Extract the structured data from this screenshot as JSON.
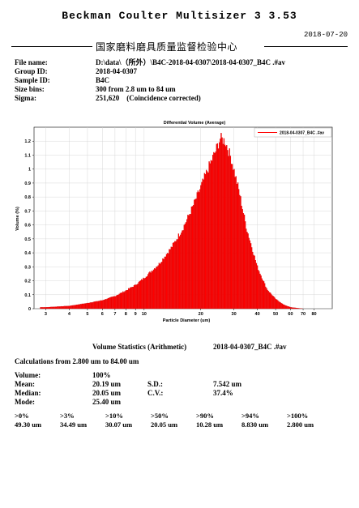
{
  "report": {
    "title": "Beckman Coulter Multisizer 3  3.53",
    "date": "2018-07-20",
    "organization": "国家磨料磨具质量监督检验中心"
  },
  "info": [
    {
      "label": "File name:",
      "value": "D:\\data\\（所外）\\B4C-2018-04-0307\\2018-04-0307_B4C .#av"
    },
    {
      "label": "Group ID:",
      "value": "2018-04-0307"
    },
    {
      "label": "Sample ID:",
      "value": "B4C"
    },
    {
      "label": "Size bins:",
      "value": "300 from 2.8 um to 84 um"
    },
    {
      "label": "Sigma:",
      "value": "251,620    (Coincidence corrected)"
    }
  ],
  "chart_data": {
    "type": "bar",
    "title": "Differential Volume (Average)",
    "xlabel": "Particle Diameter (um)",
    "ylabel": "Volume (%)",
    "x_scale": "log",
    "xlim": [
      2.8,
      84
    ],
    "ylim": [
      0,
      1.3
    ],
    "x_ticks": [
      "3",
      "4",
      "5",
      "6",
      "7",
      "8",
      "9",
      "10",
      "20",
      "30",
      "40",
      "50",
      "60",
      "70",
      "80"
    ],
    "y_ticks": [
      "0",
      "0.1",
      "0.2",
      "0.3",
      "0.4",
      "0.5",
      "0.6",
      "0.7",
      "0.8",
      "0.9",
      "1",
      "1.1",
      "1.2"
    ],
    "grid": true,
    "legend_position": "top-right",
    "series": [
      {
        "name": "2018-04-0307_B4C .#av",
        "color": "#ff0000"
      }
    ],
    "x": [
      3,
      4,
      5,
      6,
      7,
      8,
      9,
      10,
      12,
      14,
      16,
      18,
      20,
      22,
      24,
      25.4,
      27,
      29,
      32,
      35,
      40,
      45,
      50,
      55,
      60,
      70,
      84
    ],
    "values": [
      0.01,
      0.02,
      0.04,
      0.06,
      0.09,
      0.13,
      0.17,
      0.22,
      0.32,
      0.44,
      0.57,
      0.72,
      0.87,
      1.01,
      1.13,
      1.22,
      1.2,
      1.08,
      0.84,
      0.58,
      0.3,
      0.14,
      0.07,
      0.03,
      0.01,
      0.0,
      0.0
    ]
  },
  "stats": {
    "title": "Volume Statistics (Arithmetic)",
    "file": "2018-04-0307_B4C .#av",
    "calc_range": "Calculations from 2.800 um to 84.00 um",
    "volume_label": "Volume:",
    "volume": "100%",
    "mean_label": "Mean:",
    "mean": "20.19 um",
    "median_label": "Median:",
    "median": "20.05 um",
    "mode_label": "Mode:",
    "mode": "25.40 um",
    "sd_label": "S.D.:",
    "sd": "7.542 um",
    "cv_label": "C.V.:",
    "cv": "37.4%"
  },
  "percentiles": {
    "headers": [
      ">0%",
      ">3%",
      ">10%",
      ">50%",
      ">90%",
      ">94%",
      ">100%"
    ],
    "values": [
      "49.30 um",
      "34.49 um",
      "30.07 um",
      "20.05 um",
      "10.28 um",
      "8.830 um",
      "2.800 um"
    ]
  }
}
